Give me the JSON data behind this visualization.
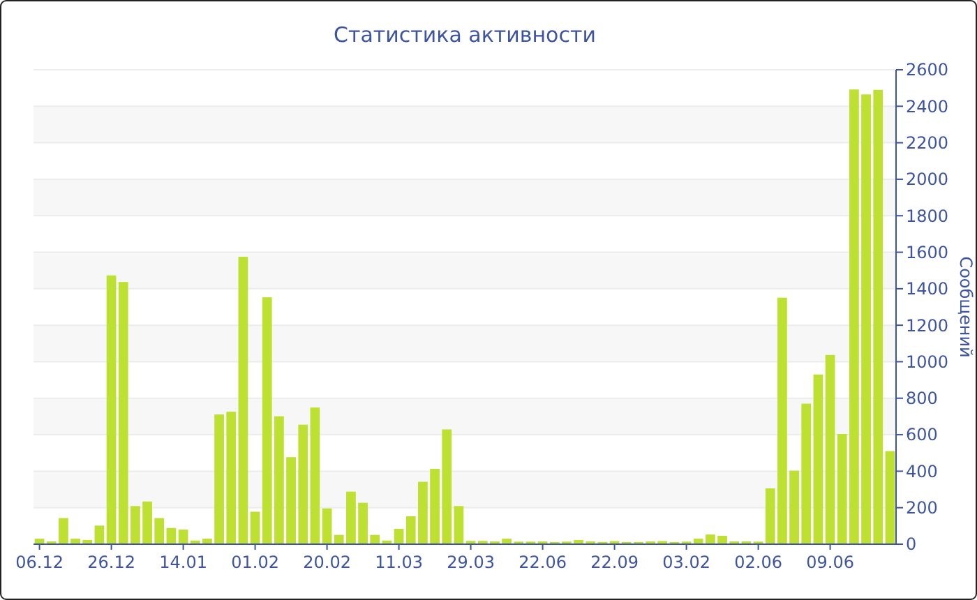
{
  "chart_data": {
    "type": "bar",
    "title": "Статистика активности",
    "ylabel": "Сообщений",
    "categories": [
      "06.12",
      null,
      null,
      null,
      null,
      null,
      "26.12",
      null,
      null,
      null,
      null,
      null,
      "14.01",
      null,
      null,
      null,
      null,
      null,
      "01.02",
      null,
      null,
      null,
      null,
      null,
      "20.02",
      null,
      null,
      null,
      null,
      null,
      "11.03",
      null,
      null,
      null,
      null,
      null,
      "29.03",
      null,
      null,
      null,
      null,
      null,
      "22.06",
      null,
      null,
      null,
      null,
      null,
      "22.09",
      null,
      null,
      null,
      null,
      null,
      "03.02",
      null,
      null,
      null,
      null,
      null,
      "02.06",
      null,
      null,
      null,
      null,
      null,
      "09.06",
      null,
      null,
      null,
      null,
      null
    ],
    "values": [
      30,
      15,
      143,
      30,
      23,
      102,
      1473,
      1437,
      209,
      234,
      143,
      89,
      80,
      20,
      30,
      711,
      726,
      1575,
      178,
      1353,
      701,
      477,
      655,
      749,
      196,
      51,
      288,
      227,
      51,
      20,
      84,
      153,
      342,
      413,
      629,
      209,
      18,
      18,
      15,
      30,
      14,
      14,
      15,
      12,
      14,
      23,
      15,
      12,
      17,
      12,
      12,
      15,
      17,
      12,
      14,
      30,
      53,
      46,
      15,
      15,
      14,
      306,
      1351,
      403,
      770,
      930,
      1037,
      604,
      2492,
      2465,
      2490,
      510
    ],
    "color": "#bde032",
    "ylim": [
      0,
      2600
    ],
    "yticks": [
      0,
      200,
      400,
      600,
      800,
      1000,
      1200,
      1400,
      1600,
      1800,
      2000,
      2200,
      2400,
      2600
    ],
    "grid": true
  }
}
